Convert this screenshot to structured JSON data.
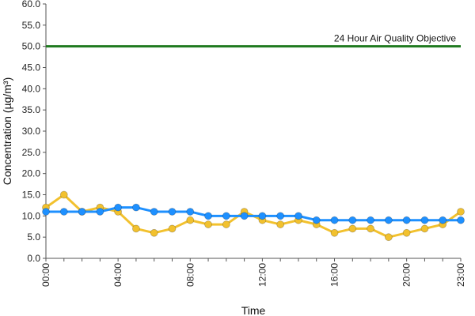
{
  "chart_data": {
    "type": "line",
    "xlabel": "Time",
    "ylabel": "Concentration (µg/m³)",
    "ylim": [
      0,
      60
    ],
    "y_ticks": [
      "0.0",
      "5.0",
      "10.0",
      "15.0",
      "20.0",
      "25.0",
      "30.0",
      "35.0",
      "40.0",
      "45.0",
      "50.0",
      "55.0",
      "60.0"
    ],
    "x_tick_labels": [
      "00:00",
      "04:00",
      "08:00",
      "12:00",
      "16:00",
      "20:00",
      "23:00"
    ],
    "x_tick_hours": [
      0,
      4,
      8,
      12,
      16,
      20,
      23
    ],
    "x": [
      0,
      1,
      2,
      3,
      4,
      5,
      6,
      7,
      8,
      9,
      10,
      11,
      12,
      13,
      14,
      15,
      16,
      17,
      18,
      19,
      20,
      21,
      22,
      23
    ],
    "grid": false,
    "series": [
      {
        "color": "#f2c12e",
        "values": [
          12,
          15,
          11,
          12,
          11,
          7,
          6,
          7,
          9,
          8,
          8,
          11,
          9,
          8,
          9,
          8,
          6,
          7,
          7,
          5,
          6,
          7,
          8,
          11
        ]
      },
      {
        "color": "#1e90ff",
        "values": [
          11,
          11,
          11,
          11,
          12,
          12,
          11,
          11,
          11,
          10,
          10,
          10,
          10,
          10,
          10,
          9,
          9,
          9,
          9,
          9,
          9,
          9,
          9,
          9
        ]
      }
    ],
    "objective": {
      "label": "24 Hour Air Quality Objective",
      "value": 50,
      "color": "#1f7a1f"
    }
  }
}
